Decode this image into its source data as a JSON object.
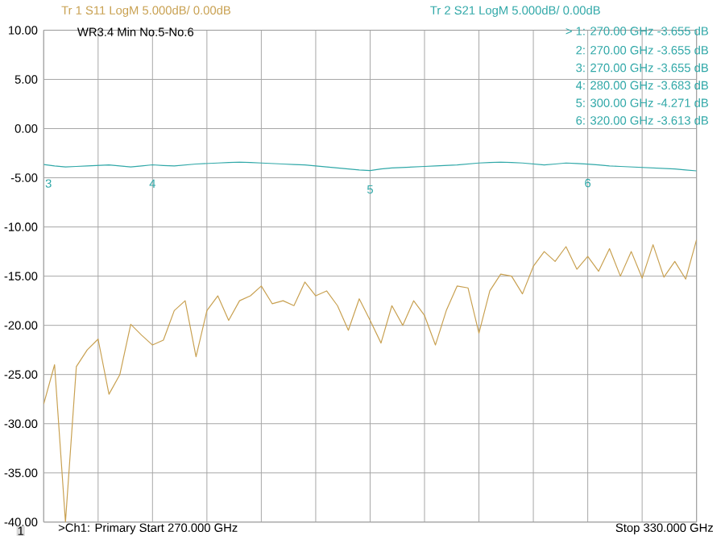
{
  "chart_data": {
    "type": "line",
    "title": "WR3.4 Min No.5-No.6",
    "categories": [
      null,
      null,
      null,
      null,
      null,
      null,
      null,
      null,
      null,
      null,
      null,
      null,
      null,
      null,
      null,
      null,
      null,
      null,
      null,
      null,
      null,
      null,
      null,
      null,
      null,
      null,
      null,
      null,
      null,
      null,
      null,
      null,
      null,
      null,
      null,
      null,
      null,
      null,
      null,
      null,
      null,
      null,
      null,
      null,
      null,
      null,
      null,
      null,
      null,
      null,
      null,
      null,
      null,
      null,
      null,
      null,
      null,
      null,
      null,
      null,
      null
    ],
    "ylim": [
      -40,
      10
    ],
    "yticks": [
      {
        "value": -40,
        "label": "-40.00"
      },
      {
        "value": -35,
        "label": "-35.00"
      },
      {
        "value": -30,
        "label": "-30.00"
      },
      {
        "value": -25,
        "label": "-25.00"
      },
      {
        "value": -20,
        "label": "-20.00"
      },
      {
        "value": -15,
        "label": "-15.00"
      },
      {
        "value": -10,
        "label": "-10.00"
      },
      {
        "value": -5,
        "label": "-5.00"
      },
      {
        "value": 0,
        "label": "0.00"
      },
      {
        "value": 5,
        "label": "5.00"
      },
      {
        "value": 10,
        "label": "10.00"
      }
    ],
    "grid": true,
    "marker": "none",
    "line_style": "solid",
    "series": [
      {
        "name": "Tr 1  S11 LogM 5.000dB/  0.00dB",
        "color": "#c8a050",
        "values": [
          -28,
          -24,
          -40,
          -24.2,
          -22.5,
          -21.4,
          -27,
          -25,
          -19.9,
          -21,
          -22,
          -21.5,
          -18.5,
          -17.5,
          -23.2,
          -18.5,
          -17,
          -19.5,
          -17.5,
          -17,
          -16,
          -17.8,
          -17.5,
          -18,
          -15.6,
          -17,
          -16.5,
          -18,
          -20.5,
          -17.3,
          -19.5,
          -21.8,
          -18,
          -20,
          -17.5,
          -19,
          -22,
          -18.5,
          -16,
          -16.2,
          -20.8,
          -16.5,
          -14.8,
          -15,
          -16.8,
          -14,
          -12.5,
          -13.5,
          -12,
          -14.3,
          -13,
          -14.5,
          -12.2,
          -15,
          -12.5,
          -15.2,
          -11.8,
          -15.1,
          -13.5,
          -15.3,
          -11.3
        ]
      },
      {
        "name": "Tr 2  S21 LogM 5.000dB/  0.00dB",
        "color": "#30a8a8",
        "values": [
          -3.655,
          -3.8,
          -3.9,
          -3.85,
          -3.8,
          -3.75,
          -3.7,
          -3.8,
          -3.9,
          -3.8,
          -3.683,
          -3.75,
          -3.8,
          -3.7,
          -3.6,
          -3.55,
          -3.5,
          -3.45,
          -3.4,
          -3.45,
          -3.5,
          -3.55,
          -3.6,
          -3.65,
          -3.7,
          -3.8,
          -3.9,
          -4.0,
          -4.1,
          -4.2,
          -4.271,
          -4.1,
          -4.0,
          -3.95,
          -3.9,
          -3.85,
          -3.8,
          -3.75,
          -3.7,
          -3.6,
          -3.5,
          -3.45,
          -3.4,
          -3.45,
          -3.5,
          -3.6,
          -3.7,
          -3.6,
          -3.5,
          -3.55,
          -3.613,
          -3.7,
          -3.8,
          -3.85,
          -3.9,
          -3.95,
          -4.0,
          -4.05,
          -4.1,
          -4.2,
          -4.3
        ]
      }
    ],
    "annotations": [
      "> 1:   270.00 GHz   -3.655 dB",
      "2:   270.00 GHz   -3.655 dB",
      "3:   270.00 GHz   -3.655 dB",
      "4:   280.00 GHz   -3.683 dB",
      "5:   300.00 GHz   -4.271 dB",
      "6:   320.00 GHz   -3.613 dB",
      {
        "text": "3",
        "y": -3.655
      },
      {
        "text": "4",
        "y": -3.683
      },
      {
        "text": "5",
        "y": -4.271
      },
      {
        "text": "6",
        "y": -3.613
      },
      "1",
      ">Ch1: Primary  Start 270.000 GHz",
      "Stop 330.000 GHz"
    ]
  }
}
